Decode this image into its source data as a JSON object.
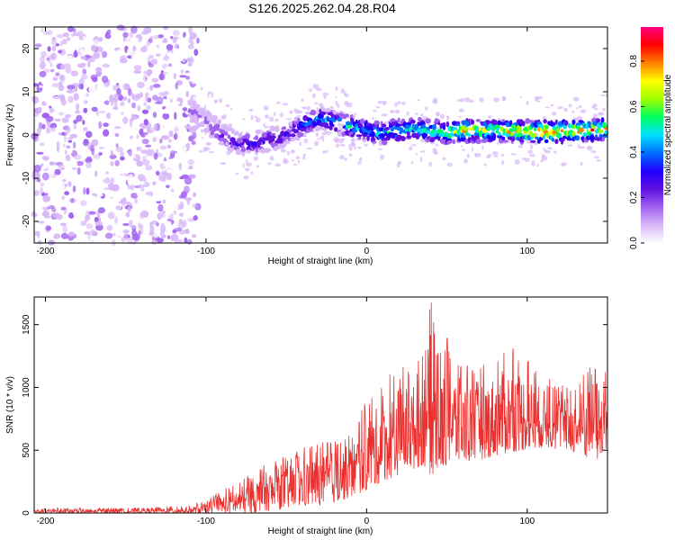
{
  "title": "S126.2025.262.04.28.R04",
  "chart_data": [
    {
      "type": "heatmap",
      "name": "spectrogram",
      "xlabel": "Height of straight line (km)",
      "ylabel": "Frequency (Hz)",
      "xlim": [
        -207,
        150
      ],
      "ylim": [
        -25,
        25
      ],
      "xticks": [
        -200,
        -100,
        0,
        100
      ],
      "yticks": [
        -20,
        -10,
        0,
        10,
        20
      ],
      "colorbar": {
        "label": "Normalized spectral amplitude",
        "range": [
          0.0,
          0.95
        ],
        "ticks": [
          "0.0",
          "0.2",
          "0.4",
          "0.6",
          "0.8"
        ],
        "tick_values": [
          0.0,
          0.2,
          0.4,
          0.6,
          0.8
        ],
        "colors": [
          "#ffffff",
          "#d8b8f8",
          "#a060f0",
          "#6010e0",
          "#2000ff",
          "#0070ff",
          "#00e0ff",
          "#00ff60",
          "#a0ff00",
          "#ffff00",
          "#ff8000",
          "#ff0000",
          "#ff0080"
        ]
      },
      "ridge": {
        "x": [
          -110,
          -100,
          -90,
          -80,
          -70,
          -60,
          -50,
          -40,
          -30,
          -20,
          -10,
          0,
          10,
          20,
          30,
          40,
          50,
          60,
          70,
          80,
          90,
          100,
          110,
          120,
          130,
          140,
          150
        ],
        "freq": [
          6,
          3,
          0,
          -2,
          -2,
          -1,
          0,
          2,
          4,
          3,
          2,
          1,
          0.5,
          1,
          1.5,
          1,
          0.5,
          1,
          1,
          1,
          1,
          0.8,
          0.8,
          0.8,
          1,
          1.2,
          1.5
        ],
        "amplitude": [
          0.15,
          0.2,
          0.25,
          0.3,
          0.3,
          0.3,
          0.3,
          0.4,
          0.45,
          0.45,
          0.5,
          0.5,
          0.5,
          0.55,
          0.55,
          0.6,
          0.65,
          0.8,
          0.7,
          0.7,
          0.8,
          0.85,
          0.9,
          0.85,
          0.85,
          0.8,
          0.75
        ]
      },
      "noise_region": [
        -207,
        -105
      ]
    },
    {
      "type": "line",
      "name": "snr",
      "xlabel": "Height of straight line (km)",
      "ylabel": "SNR (10 * v/v)",
      "xlim": [
        -207,
        150
      ],
      "ylim": [
        0,
        1720
      ],
      "xticks": [
        -200,
        -100,
        0,
        100
      ],
      "yticks": [
        0,
        500,
        1000,
        1500
      ],
      "color": "#e8302e",
      "envelope": {
        "x": [
          -207,
          -150,
          -110,
          -100,
          -90,
          -80,
          -70,
          -60,
          -50,
          -40,
          -30,
          -20,
          -10,
          0,
          10,
          20,
          30,
          35,
          40,
          45,
          50,
          60,
          70,
          80,
          90,
          100,
          110,
          120,
          130,
          140,
          150
        ],
        "max": [
          40,
          40,
          60,
          100,
          180,
          250,
          330,
          430,
          450,
          520,
          550,
          600,
          650,
          900,
          1050,
          1200,
          1200,
          1300,
          1720,
          1250,
          1400,
          1200,
          1220,
          1250,
          1350,
          1250,
          1100,
          1050,
          1000,
          1300,
          1100
        ],
        "min": [
          0,
          0,
          0,
          0,
          0,
          0,
          0,
          20,
          30,
          50,
          60,
          80,
          120,
          180,
          250,
          300,
          350,
          380,
          300,
          320,
          380,
          400,
          420,
          450,
          480,
          500,
          520,
          500,
          480,
          400,
          450
        ]
      }
    }
  ]
}
